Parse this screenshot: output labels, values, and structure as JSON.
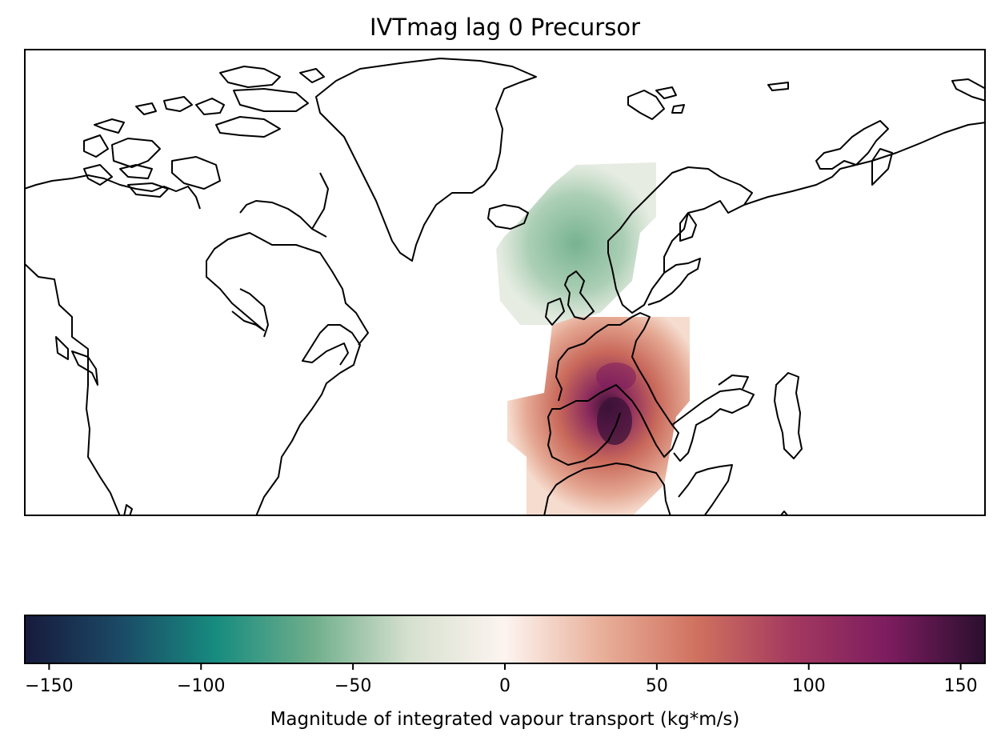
{
  "title": "IVTmag lag 0 Precursor",
  "colorbar": {
    "label": "Magnitude of integrated vapour transport (kg*m/s)",
    "vmin": -158,
    "vmax": 158,
    "ticks": [
      -150,
      -100,
      -50,
      0,
      50,
      100,
      150
    ],
    "tick_labels": [
      "−150",
      "−100",
      "−50",
      "0",
      "50",
      "100",
      "150"
    ],
    "colormap": "balance-style diverging",
    "color_stops": [
      "#171a3c",
      "#1b4a66",
      "#178c7f",
      "#6fae8b",
      "#d6e0cf",
      "#fdf4f0",
      "#e8b09a",
      "#d0715f",
      "#a3395f",
      "#7c1c5f",
      "#2a0f2e"
    ]
  },
  "map": {
    "projection": "Plate Carree",
    "coastline_color": "#000000",
    "anomalies": {
      "negative_region": "North Atlantic / Norwegian Sea",
      "positive_region": "Western Mediterranean / Central Europe",
      "positive_color": "#d0715f",
      "peak_color": "#3b1238",
      "negative_color": "#8fbfa0"
    }
  }
}
